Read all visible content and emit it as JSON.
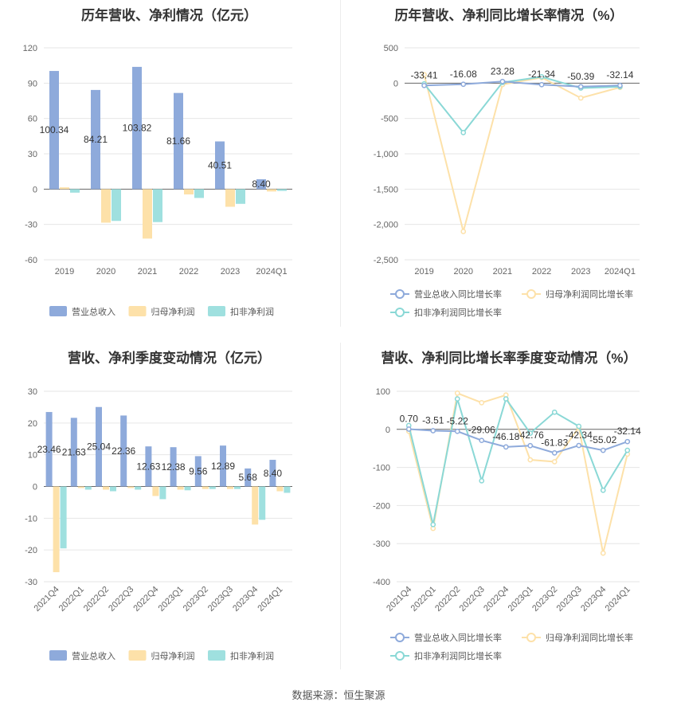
{
  "source_text": "数据来源：恒生聚源",
  "colors": {
    "revenue": "#8eaadb",
    "net_profit": "#fde1a9",
    "deducted_profit": "#9fe0df",
    "line_revenue": "#8eaadb",
    "line_net_profit": "#fde1a9",
    "line_deducted": "#8ad8d6"
  },
  "chart_data": [
    {
      "id": "annual-amounts",
      "type": "bar",
      "title": "历年营收、净利情况（亿元）",
      "categories": [
        "2019",
        "2020",
        "2021",
        "2022",
        "2023",
        "2024Q1"
      ],
      "ylim": [
        -60,
        120
      ],
      "yticks": [
        "-60",
        "-30",
        "0",
        "30",
        "60",
        "90",
        "120"
      ],
      "grid": true,
      "legend_position": "bottom",
      "series": [
        {
          "name": "营业总收入",
          "values": [
            100.34,
            84.21,
            103.82,
            81.66,
            40.51,
            8.4
          ],
          "labels": [
            "100.34",
            "84.21",
            "103.82",
            "81.66",
            "40.51",
            "8.40"
          ]
        },
        {
          "name": "归母净利润",
          "values": [
            1.5,
            -28.5,
            -42.0,
            -4.5,
            -15.0,
            -2.0
          ]
        },
        {
          "name": "扣非净利润",
          "values": [
            -3.0,
            -27.0,
            -28.0,
            -7.5,
            -12.5,
            -1.5
          ]
        }
      ]
    },
    {
      "id": "annual-growth",
      "type": "line",
      "title": "历年营收、净利同比增长率情况（%）",
      "categories": [
        "2019",
        "2020",
        "2021",
        "2022",
        "2023",
        "2024Q1"
      ],
      "ylim": [
        -2500,
        500
      ],
      "yticks": [
        "-2,500",
        "-2,000",
        "-1,500",
        "-1,000",
        "-500",
        "0",
        "500"
      ],
      "grid": true,
      "legend_position": "bottom",
      "series": [
        {
          "name": "营业总收入同比增长率",
          "values": [
            -33.41,
            -16.08,
            23.28,
            -21.34,
            -50.39,
            -32.14
          ],
          "labels": [
            "-33.41",
            "-16.08",
            "23.28",
            "-21.34",
            "-50.39",
            "-32.14"
          ]
        },
        {
          "name": "归母净利润同比增长率",
          "values": [
            120,
            -2100,
            -20,
            80,
            -210,
            -60
          ]
        },
        {
          "name": "扣非净利润同比增长率",
          "values": [
            -10,
            -700,
            10,
            90,
            -70,
            -50
          ]
        }
      ]
    },
    {
      "id": "quarterly-amounts",
      "type": "bar",
      "title": "营收、净利季度变动情况（亿元）",
      "categories": [
        "2021Q4",
        "2022Q1",
        "2022Q2",
        "2022Q3",
        "2022Q4",
        "2023Q1",
        "2023Q2",
        "2023Q3",
        "2023Q4",
        "2024Q1"
      ],
      "ylim": [
        -30,
        30
      ],
      "yticks": [
        "-30",
        "-20",
        "-10",
        "0",
        "10",
        "20",
        "30"
      ],
      "grid": true,
      "legend_position": "bottom",
      "series": [
        {
          "name": "营业总收入",
          "values": [
            23.46,
            21.63,
            25.04,
            22.36,
            12.63,
            12.38,
            9.56,
            12.89,
            5.68,
            8.4
          ],
          "labels": [
            "23.46",
            "21.63",
            "25.04",
            "22.36",
            "12.63",
            "12.38",
            "9.56",
            "12.89",
            "5.68",
            "8.40"
          ]
        },
        {
          "name": "归母净利润",
          "values": [
            -27.0,
            -0.5,
            -1.0,
            -0.5,
            -3.0,
            -1.0,
            -0.8,
            -0.8,
            -12.0,
            -1.5
          ]
        },
        {
          "name": "扣非净利润",
          "values": [
            -19.5,
            -1.0,
            -1.5,
            -1.0,
            -4.0,
            -1.2,
            -0.8,
            -0.8,
            -10.5,
            -2.0
          ]
        }
      ]
    },
    {
      "id": "quarterly-growth",
      "type": "line",
      "title": "营收、净利同比增长率季度变动情况（%）",
      "categories": [
        "2021Q4",
        "2022Q1",
        "2022Q2",
        "2022Q3",
        "2022Q4",
        "2023Q1",
        "2023Q2",
        "2023Q3",
        "2023Q4",
        "2024Q1"
      ],
      "ylim": [
        -400,
        100
      ],
      "yticks": [
        "-400",
        "-300",
        "-200",
        "-100",
        "0",
        "100"
      ],
      "grid": true,
      "legend_position": "bottom",
      "series": [
        {
          "name": "营业总收入同比增长率",
          "values": [
            0.7,
            -3.51,
            -5.22,
            -29.06,
            -46.18,
            -42.76,
            -61.83,
            -42.34,
            -55.02,
            -32.14
          ],
          "labels": [
            "0.70",
            "-3.51",
            "-5.22",
            "-29.06",
            "-46.18",
            "-42.76",
            "-61.83",
            "-42.34",
            "-55.02",
            "-32.14"
          ]
        },
        {
          "name": "归母净利润同比增长率",
          "values": [
            -5,
            -260,
            95,
            70,
            90,
            -80,
            -85,
            5,
            -325,
            -65
          ]
        },
        {
          "name": "扣非净利润同比增长率",
          "values": [
            10,
            -250,
            80,
            -135,
            80,
            -10,
            45,
            8,
            -160,
            -55
          ]
        }
      ]
    }
  ]
}
